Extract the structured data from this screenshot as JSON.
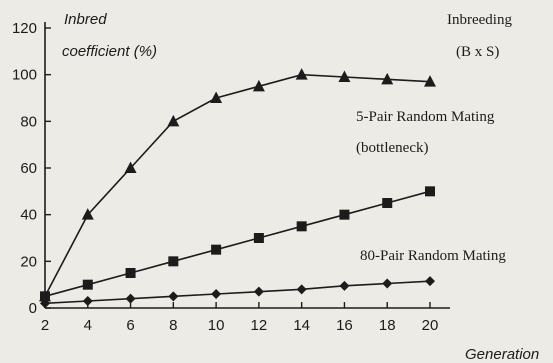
{
  "chart_data": {
    "type": "line",
    "title": "",
    "ylabel": [
      "Inbred",
      "coefficient (%)"
    ],
    "xlabel": "Generation",
    "x": [
      2,
      4,
      6,
      8,
      10,
      12,
      14,
      16,
      18,
      20
    ],
    "xticks": [
      "2",
      "4",
      "6",
      "8",
      "10",
      "12",
      "14",
      "16",
      "18",
      "20"
    ],
    "yticks": [
      "0",
      "20",
      "40",
      "60",
      "80",
      "100",
      "120"
    ],
    "ylim": [
      0,
      120
    ],
    "xlim": [
      2,
      21
    ],
    "grid": false,
    "series": [
      {
        "name": "Inbreeding (B x S)",
        "marker": "square",
        "values": [
          5,
          10,
          15,
          20,
          25,
          30,
          35,
          40,
          45,
          50
        ]
      },
      {
        "name": "5-Pair Random Mating (bottleneck)",
        "marker": "triangle",
        "values": [
          5,
          40,
          60,
          80,
          90,
          95,
          100,
          99,
          98,
          97
        ]
      },
      {
        "name": "80-Pair Random Mating",
        "marker": "diamond",
        "values": [
          2,
          3,
          4,
          5,
          6,
          7,
          8,
          9.5,
          10.5,
          11.5
        ]
      }
    ],
    "annotations": [
      {
        "lines": [
          "Inbreeding",
          "(B x S)"
        ]
      },
      {
        "lines": [
          "5-Pair Random Mating",
          "(bottleneck)"
        ]
      },
      {
        "lines": [
          "80-Pair Random Mating"
        ]
      }
    ]
  }
}
